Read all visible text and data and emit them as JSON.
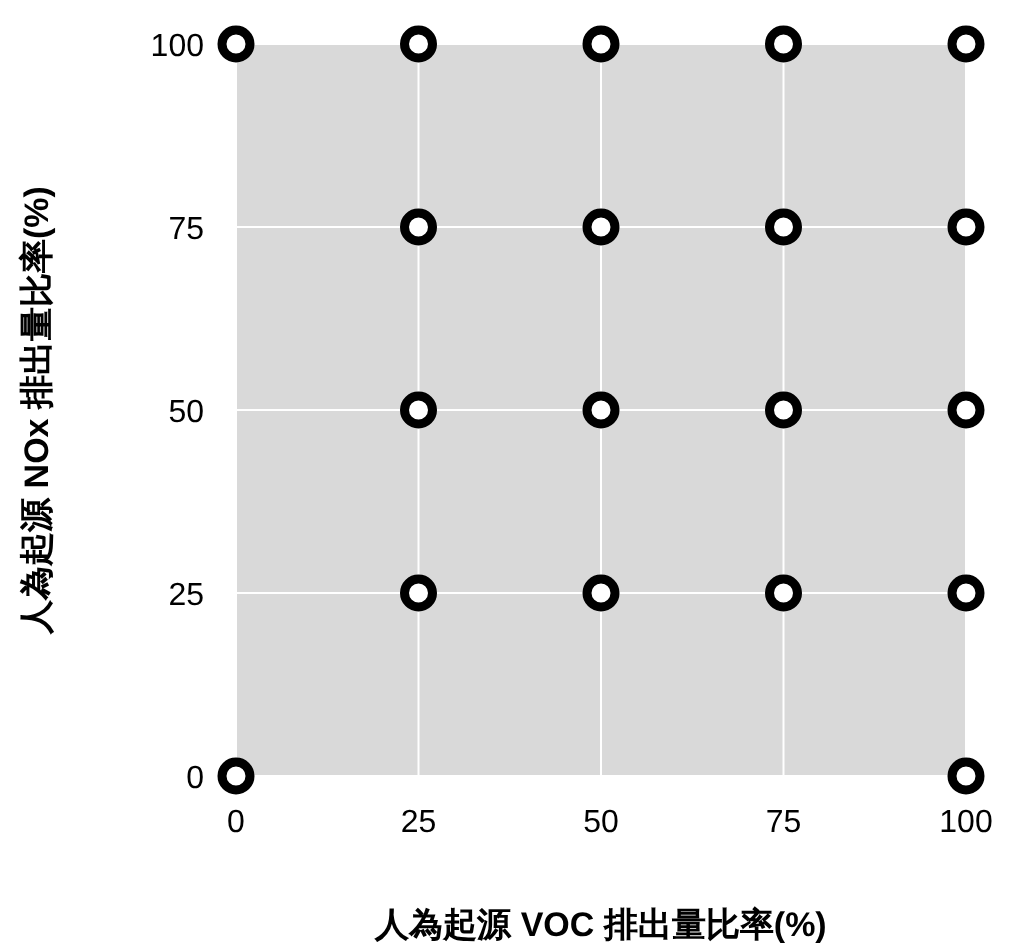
{
  "chart_data": {
    "type": "scatter",
    "xlabel": "人為起源 VOC 排出量比率(%)",
    "ylabel": "人為起源 NOx 排出量比率(%)",
    "x": [
      0,
      0,
      25,
      25,
      25,
      25,
      50,
      50,
      50,
      50,
      75,
      75,
      75,
      75,
      100,
      100,
      100,
      100,
      100
    ],
    "values": [
      0,
      100,
      25,
      50,
      75,
      100,
      25,
      50,
      75,
      100,
      25,
      50,
      75,
      100,
      0,
      25,
      50,
      75,
      100
    ],
    "color": "#000000",
    "marker": "circle",
    "grid": true,
    "xlim": [
      0,
      100
    ],
    "ylim": [
      0,
      100
    ],
    "xticks": [
      0,
      25,
      50,
      75,
      100
    ],
    "yticks": [
      0,
      25,
      50,
      75,
      100
    ]
  }
}
